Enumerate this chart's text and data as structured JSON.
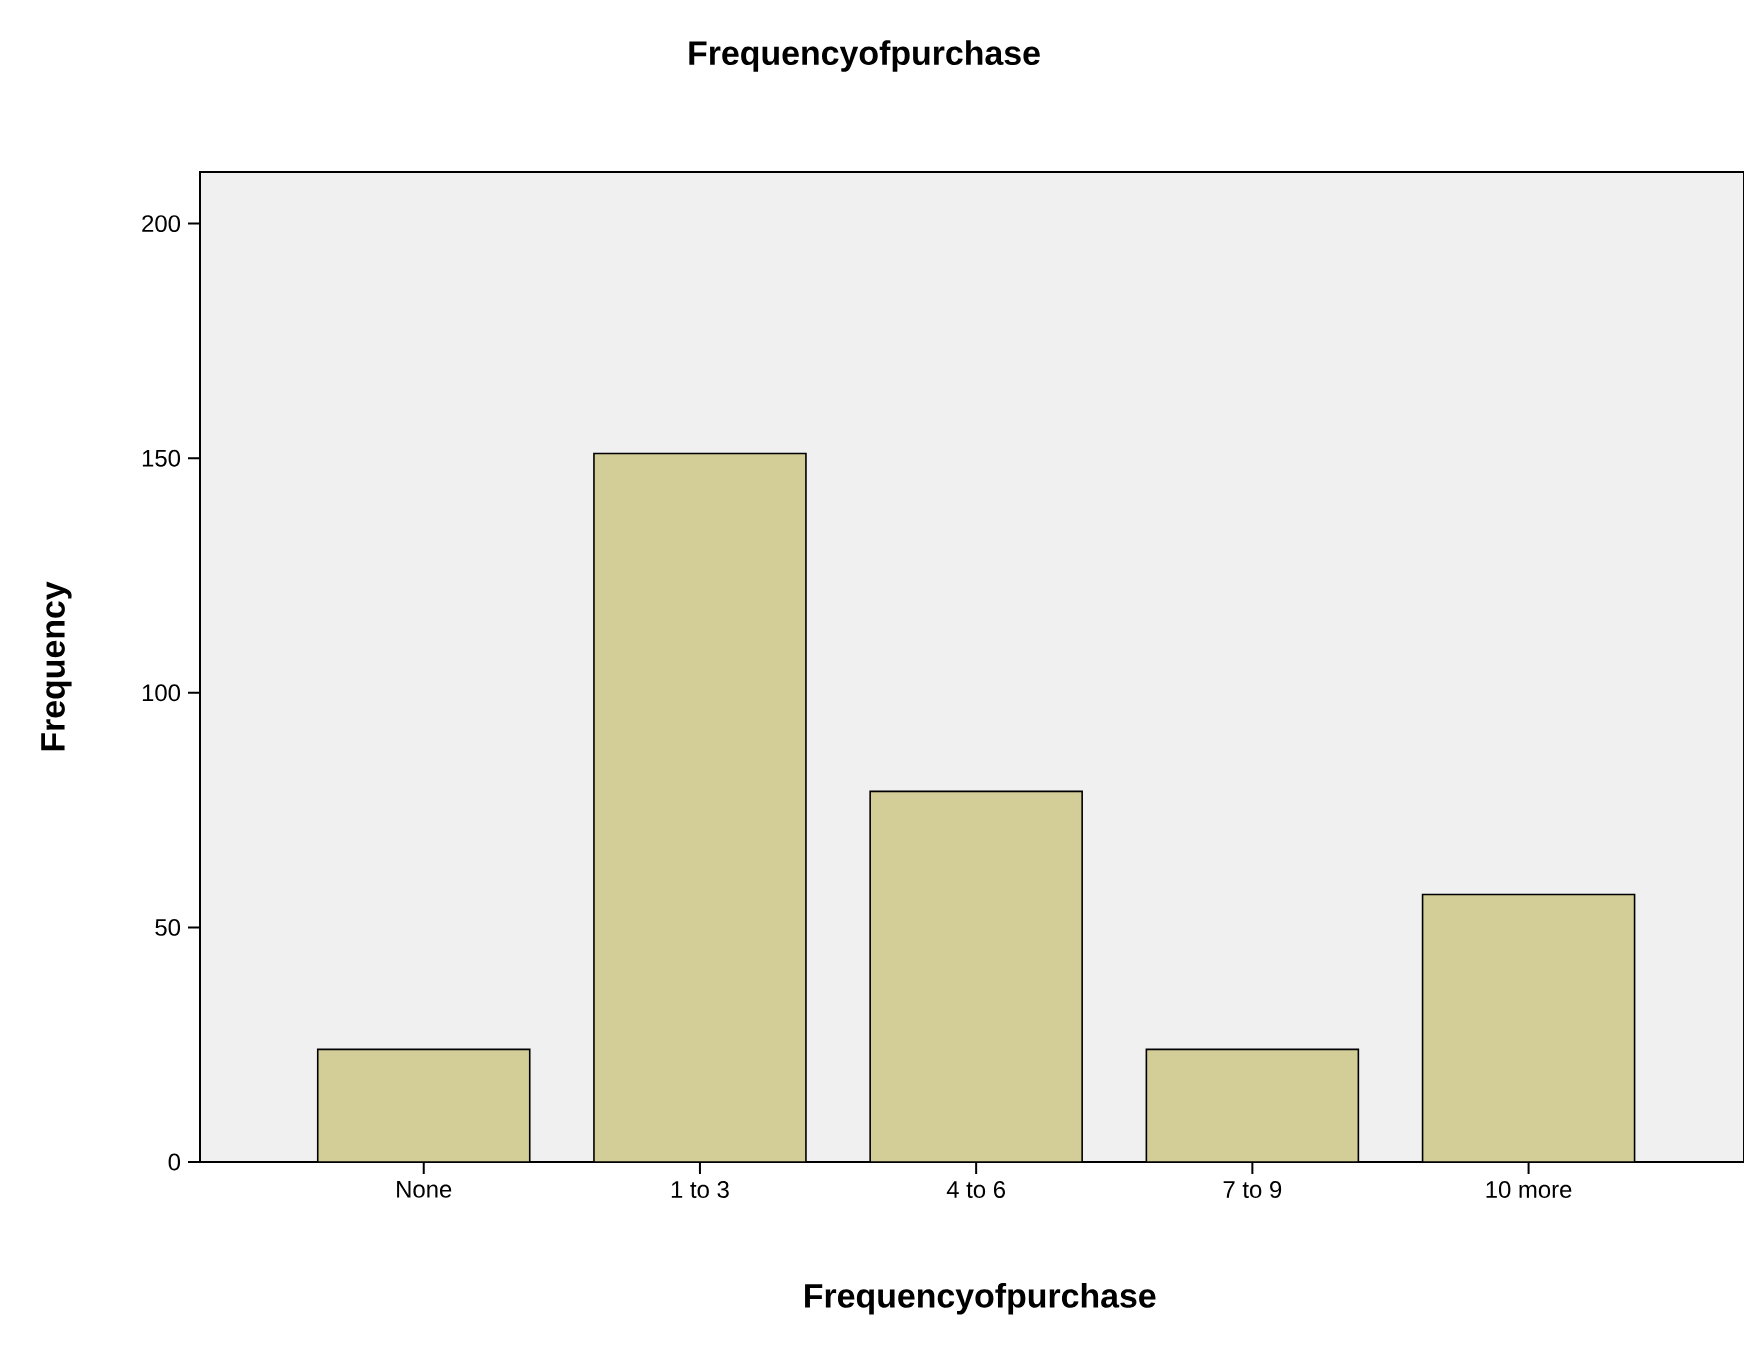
{
  "chart_data": {
    "type": "bar",
    "title": "Frequencyofpurchase",
    "xlabel": "Frequencyofpurchase",
    "ylabel": "Frequency",
    "categories": [
      "None",
      "1 to 3",
      "4 to 6",
      "7 to 9",
      "10 more"
    ],
    "values": [
      24,
      151,
      79,
      24,
      57
    ],
    "color": "#d3cd97",
    "ylim": [
      0,
      211
    ],
    "yticks": [
      0,
      50,
      100,
      150,
      200
    ],
    "grid": false
  }
}
